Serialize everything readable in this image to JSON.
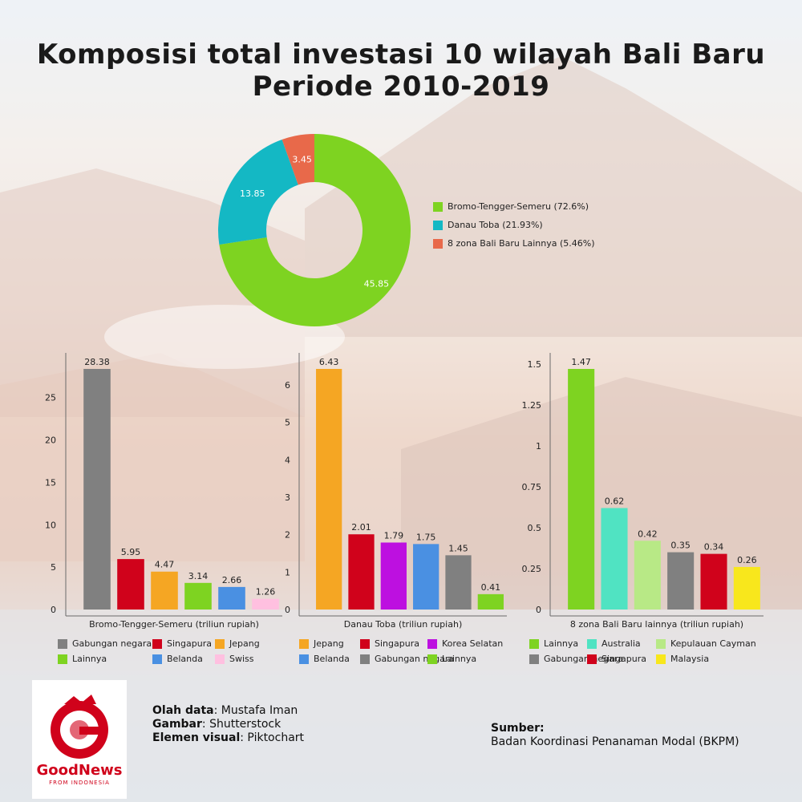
{
  "title_line1": "Komposisi total investasi 10 wilayah Bali Baru",
  "title_line2": "Periode 2010-2019",
  "chart_data": [
    {
      "type": "pie",
      "variant": "donut",
      "slices": [
        {
          "name": "Bromo-Tengger-Semeru (72.6%)",
          "value": 45.85,
          "label": "45.85",
          "color": "#7ed321"
        },
        {
          "name": "Danau Toba (21.93%)",
          "value": 13.85,
          "label": "13.85",
          "color": "#14b8c4"
        },
        {
          "name": "8 zona Bali Baru Lainnya (5.46%)",
          "value": 3.45,
          "label": "3.45",
          "color": "#e8694a"
        }
      ],
      "legend_position": "right"
    },
    {
      "type": "bar",
      "xlabel": "Bromo-Tengger-Semeru (triliun rupiah)",
      "ylim": [
        0,
        28.38
      ],
      "yticks": [
        "0",
        "5",
        "10",
        "15",
        "20",
        "25"
      ],
      "ytick_values": [
        0,
        5,
        10,
        15,
        20,
        25
      ],
      "categories": [
        "Gabungan negara",
        "Singapura",
        "Jepang",
        "Lainnya",
        "Belanda",
        "Swiss"
      ],
      "values": [
        28.38,
        5.95,
        4.47,
        3.14,
        2.66,
        1.26
      ],
      "labels": [
        "28.38",
        "5.95",
        "4.47",
        "3.14",
        "2.66",
        "1.26"
      ],
      "colors": [
        "#808080",
        "#d0021b",
        "#f5a623",
        "#7ed321",
        "#4a90e2",
        "#ffc0e0"
      ],
      "legend_position": "bottom"
    },
    {
      "type": "bar",
      "xlabel": "Danau Toba (triliun rupiah)",
      "ylim": [
        0,
        6.43
      ],
      "yticks": [
        "0",
        "1",
        "2",
        "3",
        "4",
        "5",
        "6"
      ],
      "ytick_values": [
        0,
        1,
        2,
        3,
        4,
        5,
        6
      ],
      "categories": [
        "Jepang",
        "Singapura",
        "Korea Selatan",
        "Belanda",
        "Gabungan negara",
        "Lainnya"
      ],
      "values": [
        6.43,
        2.01,
        1.79,
        1.75,
        1.45,
        0.41
      ],
      "labels": [
        "6.43",
        "2.01",
        "1.79",
        "1.75",
        "1.45",
        "0.41"
      ],
      "colors": [
        "#f5a623",
        "#d0021b",
        "#bd10e0",
        "#4a90e2",
        "#808080",
        "#7ed321"
      ],
      "legend_position": "bottom"
    },
    {
      "type": "bar",
      "xlabel": "8 zona Bali Baru lainnya (triliun rupiah)",
      "ylim": [
        0,
        1.47
      ],
      "yticks": [
        "0",
        "0.25",
        "0.5",
        "0.75",
        "1",
        "1.25",
        "1.5"
      ],
      "ytick_values": [
        0,
        0.25,
        0.5,
        0.75,
        1,
        1.25,
        1.5
      ],
      "categories": [
        "Lainnya",
        "Australia",
        "Kepulauan Cayman",
        "Gabungan negara",
        "Singapura",
        "Malaysia"
      ],
      "values": [
        1.47,
        0.62,
        0.42,
        0.35,
        0.34,
        0.26
      ],
      "labels": [
        "1.47",
        "0.62",
        "0.42",
        "0.35",
        "0.34",
        "0.26"
      ],
      "colors": [
        "#7ed321",
        "#50e3c2",
        "#b8e986",
        "#808080",
        "#d0021b",
        "#f8e71c"
      ],
      "legend_position": "bottom"
    }
  ],
  "credits": {
    "olah_label": "Olah data",
    "olah_value": ": Mustafa Iman",
    "gambar_label": "Gambar",
    "gambar_value": ": Shutterstock",
    "elemen_label": "Elemen visual",
    "elemen_value": ": Piktochart"
  },
  "source": {
    "label": "Sumber:",
    "value": "Badan Koordinasi Penanaman Modal (BKPM)"
  },
  "logo": {
    "name": "GoodNews",
    "tagline": "FROM INDONESIA"
  }
}
